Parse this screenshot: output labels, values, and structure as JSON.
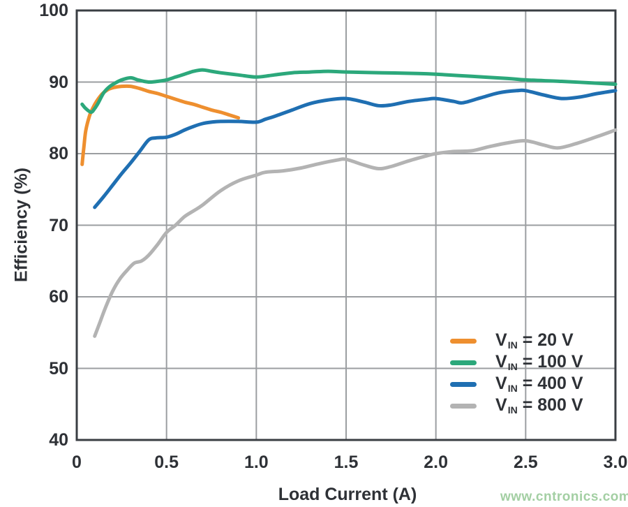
{
  "watermark": {
    "text": "www.cntronics.com",
    "color": "#a3cfa3"
  },
  "colors": {
    "background": "#ffffff",
    "axis_border": "#3a3e43",
    "gridline": "#9b9ea1",
    "text": "#2e3136"
  },
  "chart_data": {
    "type": "line",
    "title": "",
    "xlabel": "Load Current (A)",
    "ylabel": "Efficiency (%)",
    "xlim": [
      0,
      3
    ],
    "ylim": [
      40,
      100
    ],
    "xticks": [
      "0",
      "0.5",
      "1.0",
      "1.5",
      "2.0",
      "2.5",
      "3.0"
    ],
    "yticks": [
      "100",
      "90",
      "80",
      "70",
      "60",
      "50",
      "40"
    ],
    "grid": true,
    "legend_position": "inside bottom-right",
    "series": [
      {
        "name": "VIN = 20 V",
        "label_main": "V",
        "label_sub": "IN",
        "label_rest": "= 20 V",
        "color": "#ee8f2f",
        "points": [
          [
            0.03,
            78.5
          ],
          [
            0.04,
            81.0
          ],
          [
            0.05,
            83.2
          ],
          [
            0.07,
            85.2
          ],
          [
            0.09,
            86.4
          ],
          [
            0.11,
            87.3
          ],
          [
            0.14,
            88.3
          ],
          [
            0.17,
            88.9
          ],
          [
            0.2,
            89.2
          ],
          [
            0.25,
            89.4
          ],
          [
            0.3,
            89.4
          ],
          [
            0.35,
            89.1
          ],
          [
            0.4,
            88.7
          ],
          [
            0.45,
            88.4
          ],
          [
            0.5,
            88.0
          ],
          [
            0.55,
            87.6
          ],
          [
            0.6,
            87.2
          ],
          [
            0.65,
            86.9
          ],
          [
            0.7,
            86.5
          ],
          [
            0.75,
            86.1
          ],
          [
            0.8,
            85.8
          ],
          [
            0.85,
            85.4
          ],
          [
            0.9,
            85.0
          ]
        ]
      },
      {
        "name": "VIN = 100 V",
        "label_main": "V",
        "label_sub": "IN",
        "label_rest": "= 100 V",
        "color": "#2ca87b",
        "points": [
          [
            0.03,
            86.9
          ],
          [
            0.05,
            86.3
          ],
          [
            0.08,
            85.8
          ],
          [
            0.1,
            86.3
          ],
          [
            0.12,
            87.1
          ],
          [
            0.15,
            88.5
          ],
          [
            0.18,
            89.3
          ],
          [
            0.21,
            89.8
          ],
          [
            0.25,
            90.3
          ],
          [
            0.3,
            90.6
          ],
          [
            0.34,
            90.3
          ],
          [
            0.4,
            90.0
          ],
          [
            0.45,
            90.1
          ],
          [
            0.5,
            90.3
          ],
          [
            0.55,
            90.7
          ],
          [
            0.6,
            91.1
          ],
          [
            0.65,
            91.5
          ],
          [
            0.7,
            91.7
          ],
          [
            0.75,
            91.5
          ],
          [
            0.8,
            91.3
          ],
          [
            0.9,
            91.0
          ],
          [
            1.0,
            90.7
          ],
          [
            1.1,
            91.0
          ],
          [
            1.2,
            91.3
          ],
          [
            1.3,
            91.4
          ],
          [
            1.4,
            91.5
          ],
          [
            1.5,
            91.4
          ],
          [
            1.7,
            91.3
          ],
          [
            1.9,
            91.2
          ],
          [
            2.0,
            91.1
          ],
          [
            2.2,
            90.8
          ],
          [
            2.4,
            90.5
          ],
          [
            2.5,
            90.3
          ],
          [
            2.7,
            90.1
          ],
          [
            2.85,
            89.9
          ],
          [
            3.0,
            89.7
          ]
        ]
      },
      {
        "name": "VIN = 400 V",
        "label_main": "V",
        "label_sub": "IN",
        "label_rest": "= 400 V",
        "color": "#1f6fb2",
        "points": [
          [
            0.1,
            72.5
          ],
          [
            0.15,
            74.0
          ],
          [
            0.2,
            75.6
          ],
          [
            0.25,
            77.2
          ],
          [
            0.3,
            78.7
          ],
          [
            0.35,
            80.3
          ],
          [
            0.4,
            81.9
          ],
          [
            0.44,
            82.2
          ],
          [
            0.5,
            82.3
          ],
          [
            0.55,
            82.7
          ],
          [
            0.6,
            83.3
          ],
          [
            0.65,
            83.8
          ],
          [
            0.7,
            84.2
          ],
          [
            0.75,
            84.4
          ],
          [
            0.8,
            84.5
          ],
          [
            0.9,
            84.5
          ],
          [
            1.0,
            84.4
          ],
          [
            1.05,
            84.8
          ],
          [
            1.1,
            85.2
          ],
          [
            1.2,
            86.1
          ],
          [
            1.3,
            87.0
          ],
          [
            1.4,
            87.5
          ],
          [
            1.5,
            87.7
          ],
          [
            1.6,
            87.2
          ],
          [
            1.68,
            86.7
          ],
          [
            1.75,
            86.8
          ],
          [
            1.85,
            87.3
          ],
          [
            1.95,
            87.6
          ],
          [
            2.0,
            87.7
          ],
          [
            2.1,
            87.3
          ],
          [
            2.15,
            87.1
          ],
          [
            2.25,
            87.8
          ],
          [
            2.35,
            88.5
          ],
          [
            2.45,
            88.8
          ],
          [
            2.5,
            88.8
          ],
          [
            2.6,
            88.2
          ],
          [
            2.7,
            87.7
          ],
          [
            2.8,
            87.9
          ],
          [
            2.9,
            88.4
          ],
          [
            3.0,
            88.8
          ]
        ]
      },
      {
        "name": "VIN = 800 V",
        "label_main": "V",
        "label_sub": "IN",
        "label_rest": "= 800 V",
        "color": "#b3b3b3",
        "points": [
          [
            0.1,
            54.5
          ],
          [
            0.13,
            56.5
          ],
          [
            0.16,
            58.5
          ],
          [
            0.2,
            60.8
          ],
          [
            0.24,
            62.5
          ],
          [
            0.28,
            63.7
          ],
          [
            0.32,
            64.7
          ],
          [
            0.36,
            65.0
          ],
          [
            0.4,
            65.8
          ],
          [
            0.45,
            67.3
          ],
          [
            0.5,
            69.0
          ],
          [
            0.55,
            70.0
          ],
          [
            0.6,
            71.2
          ],
          [
            0.65,
            72.0
          ],
          [
            0.7,
            72.8
          ],
          [
            0.8,
            74.8
          ],
          [
            0.9,
            76.2
          ],
          [
            1.0,
            77.0
          ],
          [
            1.05,
            77.4
          ],
          [
            1.15,
            77.6
          ],
          [
            1.25,
            78.0
          ],
          [
            1.35,
            78.6
          ],
          [
            1.45,
            79.1
          ],
          [
            1.5,
            79.2
          ],
          [
            1.6,
            78.4
          ],
          [
            1.68,
            77.9
          ],
          [
            1.75,
            78.2
          ],
          [
            1.85,
            79.0
          ],
          [
            1.95,
            79.7
          ],
          [
            2.0,
            80.0
          ],
          [
            2.1,
            80.3
          ],
          [
            2.2,
            80.4
          ],
          [
            2.3,
            81.0
          ],
          [
            2.4,
            81.5
          ],
          [
            2.5,
            81.8
          ],
          [
            2.6,
            81.2
          ],
          [
            2.68,
            80.8
          ],
          [
            2.78,
            81.4
          ],
          [
            2.9,
            82.4
          ],
          [
            3.0,
            83.3
          ]
        ]
      }
    ]
  }
}
